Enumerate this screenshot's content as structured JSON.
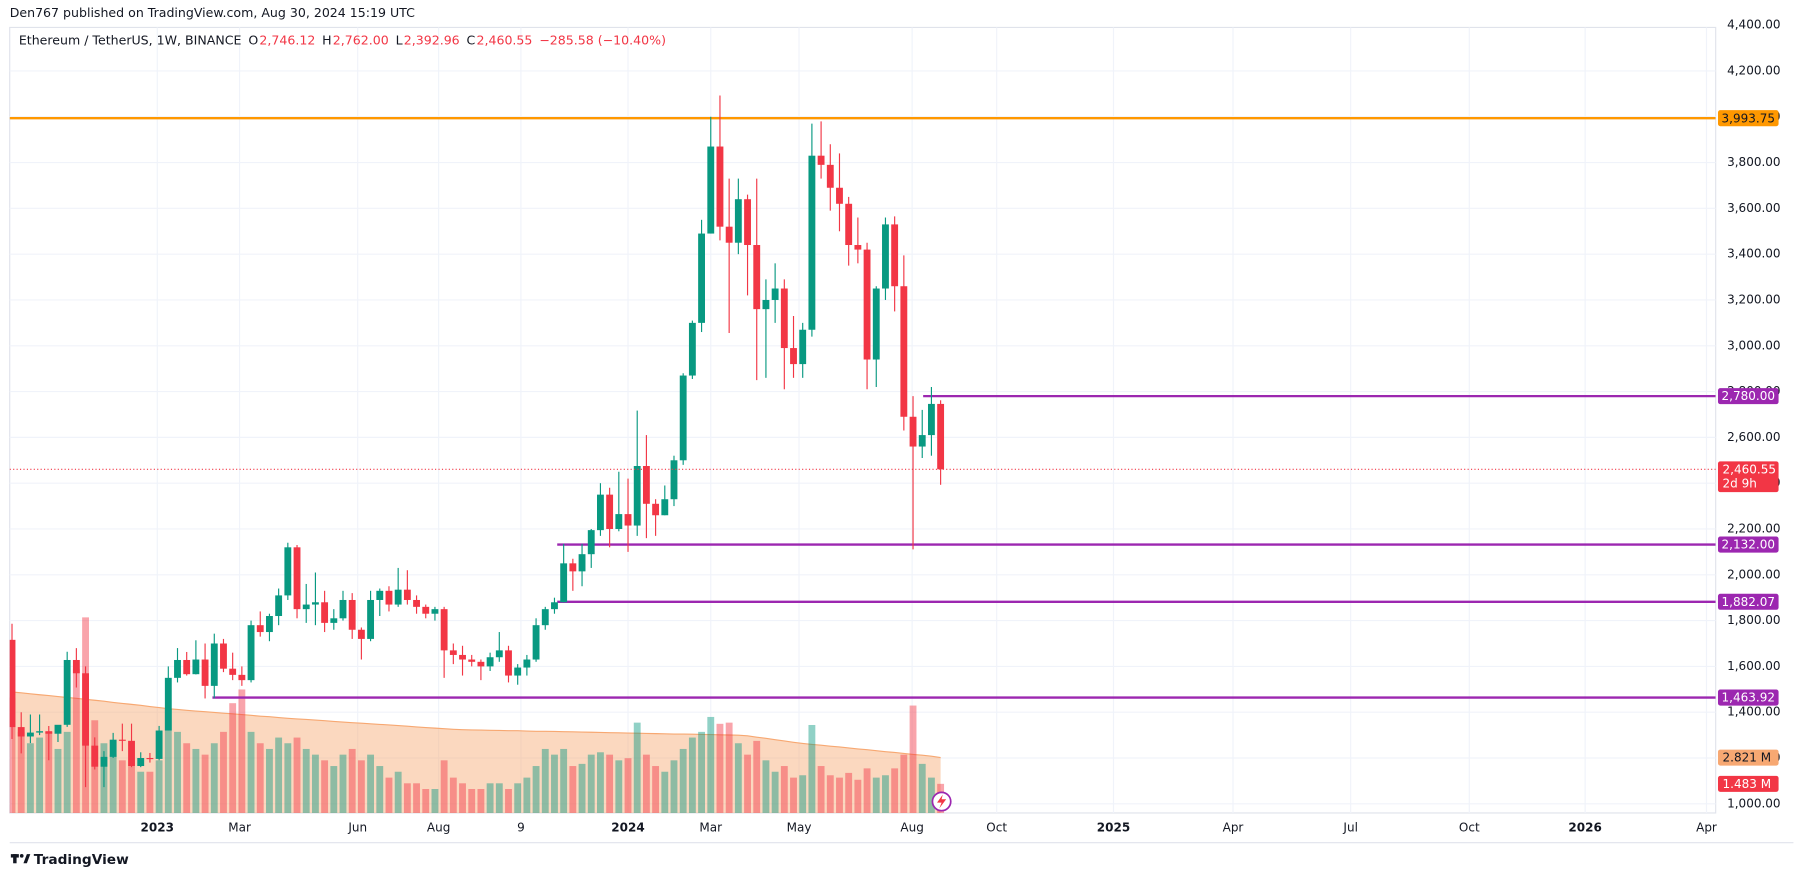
{
  "publisher": "Den767 published on TradingView.com, Aug 30, 2024 15:19 UTC",
  "footer_brand": "TradingView",
  "chart_data": {
    "type": "candlestick",
    "symbol": "Ethereum / TetherUS, 1W, BINANCE",
    "legend": [
      {
        "key": "O",
        "value": "2,746.12"
      },
      {
        "key": "H",
        "value": "2,762.00"
      },
      {
        "key": "L",
        "value": "2,392.96"
      },
      {
        "key": "C",
        "value": "2,460.55"
      }
    ],
    "change": "−285.58 (−10.40%)",
    "up_color": "#089981",
    "down_color": "#f23645",
    "grid": true,
    "xlim": [
      -0.25,
      185.3
    ],
    "xticks": [
      {
        "value": 15.8,
        "label": "2023"
      },
      {
        "value": 24.75,
        "label": "Mar"
      },
      {
        "value": 37.6,
        "label": "Jun"
      },
      {
        "value": 46.4,
        "label": "Aug"
      },
      {
        "value": 55.35,
        "label": "9"
      },
      {
        "value": 67,
        "label": "2024"
      },
      {
        "value": 76,
        "label": "Mar"
      },
      {
        "value": 85.6,
        "label": "May"
      },
      {
        "value": 97.9,
        "label": "Aug"
      },
      {
        "value": 107.1,
        "label": "Oct"
      },
      {
        "value": 119.8,
        "label": "2025"
      },
      {
        "value": 132.8,
        "label": "Apr"
      },
      {
        "value": 145.6,
        "label": "Jul"
      },
      {
        "value": 158.5,
        "label": "Oct"
      },
      {
        "value": 171.1,
        "label": "2026"
      },
      {
        "value": 184.3,
        "label": "Apr"
      }
    ],
    "ylim": [
      960,
      4390
    ],
    "yticks": [
      {
        "value": 1000,
        "label": "1,000.00"
      },
      {
        "value": 1200,
        "label": "1,200.00"
      },
      {
        "value": 1400,
        "label": "1,400.00"
      },
      {
        "value": 1600,
        "label": "1,600.00"
      },
      {
        "value": 1800,
        "label": "1,800.00"
      },
      {
        "value": 2000,
        "label": "2,000.00"
      },
      {
        "value": 2200,
        "label": "2,200.00"
      },
      {
        "value": 2400,
        "label": "2,400.00"
      },
      {
        "value": 2600,
        "label": "2,600.00"
      },
      {
        "value": 2800,
        "label": "2,800.00"
      },
      {
        "value": 3000,
        "label": "3,000.00"
      },
      {
        "value": 3200,
        "label": "3,200.00"
      },
      {
        "value": 3400,
        "label": "3,400.00"
      },
      {
        "value": 3600,
        "label": "3,600.00"
      },
      {
        "value": 3800,
        "label": "3,800.00"
      },
      {
        "value": 4000,
        "label": "4,000.00"
      },
      {
        "value": 4200,
        "label": "4,200.00"
      },
      {
        "value": 4400,
        "label": "4,400.00"
      }
    ],
    "candles": {
      "open": [
        1716,
        1335,
        1294,
        1311,
        1317,
        1306,
        1345,
        1628,
        1570,
        1254,
        1162,
        1205,
        1280,
        1275,
        1165,
        1200,
        1196,
        1320,
        1550,
        1628,
        1566,
        1630,
        1515,
        1700,
        1590,
        1563,
        1540,
        1780,
        1750,
        1820,
        1910,
        2120,
        1850,
        1870,
        1880,
        1790,
        1810,
        1890,
        1760,
        1720,
        1890,
        1930,
        1870,
        1935,
        1890,
        1860,
        1830,
        1850,
        1670,
        1650,
        1630,
        1620,
        1600,
        1640,
        1670,
        1560,
        1595,
        1630,
        1780,
        1850,
        1880,
        2050,
        2015,
        2090,
        2195,
        2350,
        2200,
        2265,
        2215,
        2475,
        2310,
        2260,
        2330,
        2500,
        2870,
        3100,
        3490,
        3870,
        3520,
        3450,
        3640,
        3440,
        3160,
        3200,
        3250,
        2990,
        2920,
        3070,
        3830,
        3790,
        3690,
        3620,
        3440,
        3420,
        2940,
        3250,
        3530,
        3260,
        2690,
        2560,
        2610,
        2746.12
      ],
      "high": [
        1786,
        1400,
        1390,
        1390,
        1340,
        1340,
        1664,
        1680,
        1600,
        1290,
        1230,
        1310,
        1350,
        1350,
        1225,
        1222,
        1340,
        1600,
        1680,
        1663,
        1714,
        1700,
        1743,
        1720,
        1660,
        1600,
        1800,
        1840,
        1830,
        1940,
        2140,
        2130,
        1960,
        2010,
        1930,
        1850,
        1930,
        1920,
        1770,
        1930,
        1940,
        1950,
        2030,
        2020,
        1910,
        1870,
        1860,
        1860,
        1700,
        1690,
        1650,
        1630,
        1660,
        1750,
        1690,
        1610,
        1650,
        1810,
        1860,
        1900,
        2135,
        2070,
        2135,
        2200,
        2400,
        2380,
        2450,
        2420,
        2717,
        2610,
        2330,
        2390,
        2520,
        2880,
        3110,
        3550,
        4000,
        4093,
        3730,
        3730,
        3660,
        3730,
        3290,
        3360,
        3290,
        3130,
        3100,
        3970,
        3980,
        3880,
        3840,
        3650,
        3560,
        3450,
        3260,
        3560,
        3565,
        3395,
        2780,
        2720,
        2820,
        2762
      ],
      "low": [
        1283,
        1220,
        1265,
        1300,
        1190,
        1270,
        1336,
        1508,
        1073,
        1150,
        1073,
        1200,
        1230,
        1160,
        1160,
        1180,
        1190,
        1320,
        1530,
        1560,
        1565,
        1460,
        1461,
        1575,
        1540,
        1515,
        1530,
        1730,
        1710,
        1780,
        1890,
        1810,
        1790,
        1780,
        1750,
        1760,
        1800,
        1720,
        1630,
        1710,
        1820,
        1840,
        1860,
        1870,
        1830,
        1810,
        1800,
        1550,
        1610,
        1560,
        1600,
        1540,
        1580,
        1620,
        1530,
        1520,
        1560,
        1620,
        1760,
        1830,
        1880,
        1930,
        1950,
        2030,
        2170,
        2120,
        2190,
        2100,
        2170,
        2160,
        2170,
        2260,
        2300,
        2480,
        2855,
        3060,
        3490,
        3460,
        3056,
        3400,
        3220,
        2850,
        2860,
        3100,
        2810,
        2860,
        2860,
        3040,
        3730,
        3590,
        3500,
        3350,
        3360,
        2810,
        2820,
        3200,
        3150,
        2630,
        2111,
        2510,
        2520,
        2392.96
      ],
      "close": [
        1335,
        1294,
        1311,
        1317,
        1306,
        1345,
        1628,
        1570,
        1254,
        1162,
        1205,
        1280,
        1275,
        1165,
        1200,
        1196,
        1320,
        1550,
        1628,
        1566,
        1630,
        1515,
        1700,
        1590,
        1563,
        1540,
        1780,
        1750,
        1820,
        1910,
        2120,
        1850,
        1870,
        1880,
        1790,
        1810,
        1890,
        1760,
        1720,
        1890,
        1930,
        1870,
        1935,
        1890,
        1860,
        1830,
        1850,
        1670,
        1650,
        1630,
        1620,
        1600,
        1640,
        1670,
        1560,
        1595,
        1630,
        1780,
        1850,
        1880,
        2050,
        2015,
        2090,
        2195,
        2350,
        2200,
        2265,
        2215,
        2475,
        2310,
        2260,
        2330,
        2500,
        2870,
        3100,
        3490,
        3870,
        3520,
        3450,
        3640,
        3440,
        3160,
        3200,
        3250,
        2990,
        2920,
        3070,
        3830,
        3790,
        3690,
        3620,
        3440,
        3420,
        2940,
        3250,
        3530,
        3260,
        2690,
        2560,
        2610,
        2746.12,
        2460.55
      ]
    },
    "volume_ylim": [
      0,
      40
    ],
    "volume": {
      "values": [
        5.88,
        4.13,
        3.55,
        3.84,
        4.13,
        3.26,
        4.13,
        7.34,
        9.96,
        4.72,
        3.55,
        2.97,
        2.68,
        2.39,
        2.1,
        2.1,
        2.68,
        5.3,
        4.13,
        3.55,
        3.26,
        2.97,
        3.55,
        4.13,
        5.59,
        6.29,
        4.13,
        3.55,
        3.26,
        3.84,
        3.55,
        3.84,
        3.26,
        2.97,
        2.68,
        2.39,
        2.97,
        3.26,
        2.68,
        2.97,
        2.39,
        1.8,
        2.1,
        1.51,
        1.51,
        1.22,
        1.22,
        2.68,
        1.8,
        1.51,
        1.22,
        1.22,
        1.51,
        1.51,
        1.22,
        1.51,
        1.8,
        2.39,
        3.26,
        2.97,
        3.26,
        2.39,
        2.5,
        2.97,
        3.09,
        2.97,
        2.68,
        2.79,
        4.6,
        2.97,
        2.39,
        2.1,
        2.68,
        3.26,
        3.84,
        4.13,
        4.89,
        4.54,
        4.6,
        3.55,
        2.97,
        3.67,
        2.68,
        2.1,
        2.39,
        1.8,
        1.92,
        4.48,
        2.39,
        1.92,
        1.8,
        2.04,
        1.69,
        2.27,
        1.8,
        1.92,
        2.27,
        2.97,
        5.47,
        2.5,
        1.8,
        1.483
      ]
    },
    "volume_ma": {
      "color": "#f7a872",
      "values": [
        6.16,
        6.12,
        6.07,
        6.02,
        5.98,
        5.93,
        5.88,
        5.84,
        5.79,
        5.74,
        5.69,
        5.63,
        5.58,
        5.53,
        5.48,
        5.42,
        5.37,
        5.31,
        5.27,
        5.23,
        5.19,
        5.16,
        5.12,
        5.08,
        5.05,
        5.01,
        4.97,
        4.93,
        4.9,
        4.86,
        4.82,
        4.79,
        4.76,
        4.73,
        4.7,
        4.66,
        4.63,
        4.6,
        4.57,
        4.54,
        4.51,
        4.48,
        4.45,
        4.42,
        4.38,
        4.35,
        4.32,
        4.29,
        4.26,
        4.24,
        4.23,
        4.22,
        4.21,
        4.2,
        4.19,
        4.19,
        4.17,
        4.16,
        4.16,
        4.15,
        4.14,
        4.13,
        4.12,
        4.11,
        4.1,
        4.09,
        4.08,
        4.07,
        4.06,
        4.05,
        4.04,
        4.03,
        4.02,
        4.02,
        4.01,
        4.0,
        3.99,
        3.98,
        3.97,
        3.96,
        3.93,
        3.86,
        3.8,
        3.73,
        3.67,
        3.6,
        3.54,
        3.49,
        3.45,
        3.4,
        3.36,
        3.31,
        3.26,
        3.22,
        3.17,
        3.12,
        3.08,
        3.03,
        2.98,
        2.94,
        2.89,
        2.821
      ]
    },
    "volume_ma_badge": {
      "value": 2.821,
      "label": "2.821 M"
    },
    "volume_badge": {
      "value": 1.483,
      "label": "1.483 M"
    },
    "levels": [
      {
        "value": 3993.75,
        "label": "3,993.75",
        "color": "#ff9800"
      },
      {
        "value": 2780,
        "label": "2,780.00",
        "color": "#9c27b0"
      },
      {
        "value": 2132,
        "label": "2,132.00",
        "color": "#9c27b0"
      },
      {
        "value": 1882.07,
        "label": "1,882.07",
        "color": "#9c27b0"
      },
      {
        "value": 1463.92,
        "label": "1,463.92",
        "color": "#9c27b0"
      }
    ],
    "last_price": {
      "value": 2460.55,
      "label": "2,460.55"
    },
    "countdown": "2d 9h"
  }
}
